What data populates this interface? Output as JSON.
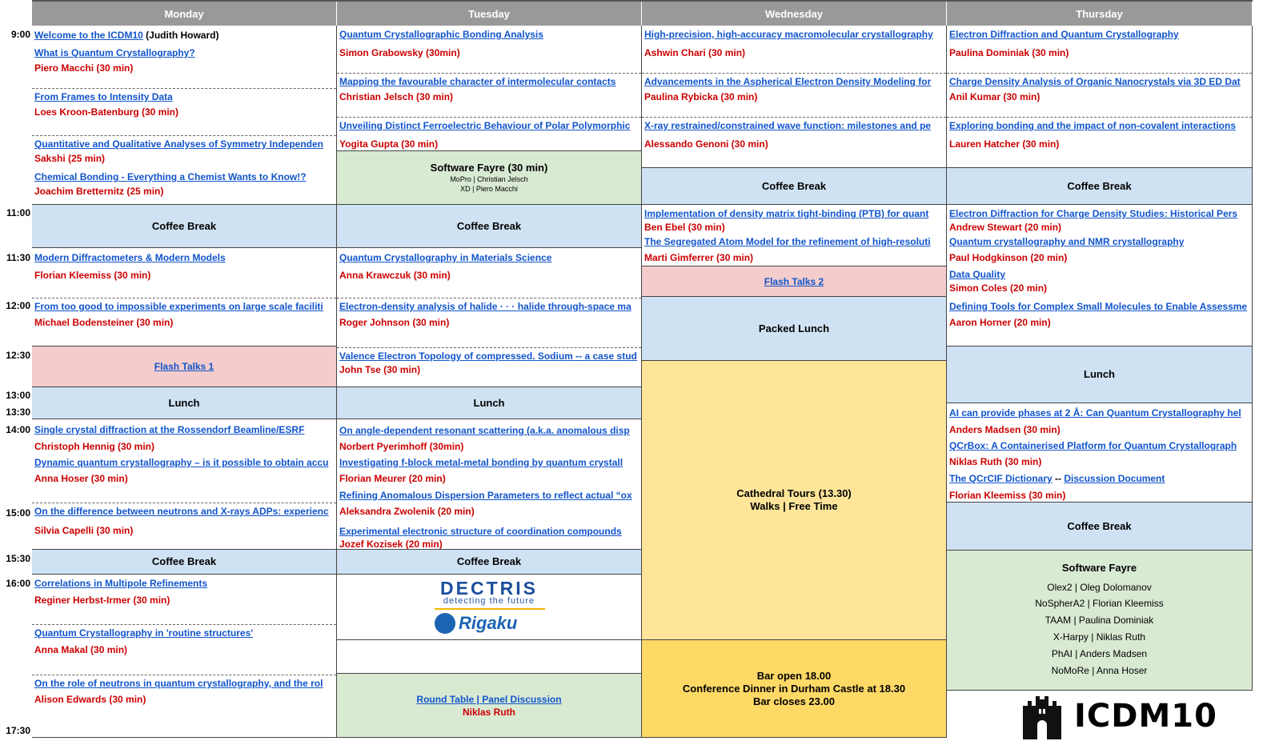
{
  "days": [
    "Monday",
    "Tuesday",
    "Wednesday",
    "Thursday"
  ],
  "times": [
    "9:00",
    "11:00",
    "11:30",
    "12:00",
    "12:30",
    "13:00",
    "13:30",
    "14:00",
    "15:00",
    "15:30",
    "16:00",
    "17:30"
  ],
  "columns": [
    {
      "blocks": [
        {
          "items": [
            {
              "title": "Welcome to the ICDM10",
              "note": "(Judith Howard)"
            },
            {
              "title": "What is Quantum Crystallography?",
              "speaker": "Piero Macchi (30 min)"
            },
            {
              "title": "From Frames to Intensity Data",
              "speaker": "Loes Kroon-Batenburg (30 min)"
            },
            {
              "title": "Quantitative and Qualitative Analyses of Symmetry Independen",
              "speaker": "Sakshi (25 min)"
            },
            {
              "title": "Chemical Bonding - Everything a Chemist Wants to Know!?",
              "speaker": "Joachim Bretternitz (25 min)"
            }
          ]
        },
        {
          "title": "Coffee Break"
        },
        {
          "items": [
            {
              "title": "Modern Diffractometers & Modern Models",
              "speaker": "Florian Kleemiss (30 min)"
            },
            {
              "title": "From too good to impossible experiments on large scale faciliti",
              "speaker": "Michael Bodensteiner (30 min)"
            }
          ]
        },
        {
          "title": "Flash Talks 1"
        },
        {
          "title": "Lunch"
        },
        {
          "items": [
            {
              "title": "Single crystal diffraction at the Rossendorf Beamline/ESRF",
              "speaker": "Christoph Hennig (30 min)"
            },
            {
              "title": "Dynamic quantum crystallography – is it possible to obtain accu",
              "speaker": "Anna Hoser (30 min)"
            },
            {
              "title": "On the difference between neutrons and X-rays ADPs: experienc",
              "speaker": "Silvia Capelli (30 min)"
            }
          ]
        },
        {
          "title": "Coffee Break"
        },
        {
          "items": [
            {
              "title": "Correlations in Multipole Refinements",
              "speaker": "Reginer Herbst-Irmer (30 min)"
            },
            {
              "title": "Quantum Crystallography in 'routine structures'",
              "speaker": "Anna Makal (30 min)"
            },
            {
              "title": "On the role of neutrons in quantum crystallography, and the rol",
              "speaker": "Alison Edwards (30 min)"
            }
          ]
        }
      ]
    },
    {
      "blocks": [
        {
          "items": [
            {
              "title": "Quantum Crystallographic Bonding Analysis",
              "speaker": "Simon Grabowsky (30min)"
            },
            {
              "title": "Mapping the favourable character of intermolecular contacts",
              "speaker": "Christian Jelsch (30 min)"
            },
            {
              "title": "Unveiling Distinct Ferroelectric Behaviour of Polar Polymorphic",
              "speaker": "Yogita Gupta (30 min)"
            }
          ]
        },
        {
          "title": "Software Fayre (30 min)",
          "lines": [
            "MoPro | Christian Jelsch",
            "XD | Piero Macchi"
          ]
        },
        {
          "title": "Coffee Break"
        },
        {
          "items": [
            {
              "title": "Quantum Crystallography in Materials Science",
              "speaker": "Anna Krawczuk (30 min)"
            },
            {
              "title": "Electron-density analysis of halide · · · halide through-space ma",
              "speaker": "Roger Johnson (30 min)"
            },
            {
              "title": "Valence Electron Topology of compressed. Sodium -- a case stud",
              "speaker": "John Tse (30 min)"
            }
          ]
        },
        {
          "title": "Lunch"
        },
        {
          "items": [
            {
              "title": "On angle-dependent resonant scattering (a.k.a. anomalous disp",
              "speaker": "Norbert Pyerimhoff (30min)"
            },
            {
              "title": "Investigating f-block metal-metal bonding by quantum crystall",
              "speaker": "Florian Meurer (20 min)"
            },
            {
              "title": "Refining Anomalous Dispersion Parameters to reflect actual “ox",
              "speaker": "Aleksandra Zwolenik (20 min)"
            },
            {
              "title": "Experimental electronic structure of coordination compounds",
              "speaker": "Jozef Kozisek (20 min)"
            }
          ]
        },
        {
          "title": "Coffee Break"
        },
        {
          "sponsors": [
            "DECTRIS",
            "detecting the future",
            "Rigaku"
          ]
        },
        {
          "title": "Round Table | Panel Discussion",
          "speaker": "Niklas Ruth"
        }
      ]
    },
    {
      "blocks": [
        {
          "items": [
            {
              "title": "High-precision, high-accuracy macromolecular crystallography",
              "speaker": "Ashwin Chari (30 min)"
            },
            {
              "title": "Advancements in the Aspherical Electron Density Modeling for",
              "speaker": "Paulina Rybicka (30 min)"
            },
            {
              "title": "X-ray restrained/constrained wave function: milestones and pe",
              "speaker": "Alessando Genoni (30 min)"
            }
          ]
        },
        {
          "title": "Coffee Break"
        },
        {
          "items": [
            {
              "title": "Implementation of density matrix tight-binding (PTB) for quant",
              "speaker": "Ben Ebel (30 min)"
            },
            {
              "title": "The Segregated Atom Model for the refinement of high-resoluti",
              "speaker": "Marti Gimferrer (30 min)"
            }
          ]
        },
        {
          "title": "Flash Talks 2"
        },
        {
          "title": "Packed Lunch"
        },
        {
          "title": "Cathedral Tours (13.30)",
          "lines": [
            "Walks | Free Time"
          ]
        },
        {
          "lines": [
            "Bar open 18.00",
            "Conference Dinner in Durham Castle at 18.30",
            "Bar closes 23.00"
          ]
        }
      ]
    },
    {
      "blocks": [
        {
          "items": [
            {
              "title": "Electron Diffraction and Quantum Crystallography",
              "speaker": "Paulina Dominiak (30 min)"
            },
            {
              "title": "Charge Density Analysis of Organic Nanocrystals via 3D ED Dat",
              "speaker": "Anil Kumar (30 min)"
            },
            {
              "title": "Exploring bonding and the impact of non-covalent interactions",
              "speaker": "Lauren Hatcher (30 min)"
            }
          ]
        },
        {
          "title": "Coffee Break"
        },
        {
          "items": [
            {
              "title": "Electron Diffraction for Charge Density Studies: Historical Pers",
              "speaker": "Andrew Stewart (20 min)"
            },
            {
              "title": "Quantum crystallography and NMR crystallography",
              "speaker": "Paul Hodgkinson (20 min)"
            },
            {
              "title": "Data Quality",
              "speaker": "Simon Coles (20 min)"
            },
            {
              "title": "Defining Tools for Complex Small Molecules to Enable Assessme",
              "speaker": "Aaron Horner (20 min)"
            }
          ]
        },
        {
          "title": "Lunch"
        },
        {
          "items": [
            {
              "title": "AI can provide phases at 2 Å: Can Quantum Crystallography hel",
              "speaker": "Anders Madsen (30 min)"
            },
            {
              "title": "QCrBox: A Containerised Platform for Quantum Crystallograph",
              "speaker": "Niklas Ruth (30 min)"
            },
            {
              "title": "The QCrCIF Dictionary",
              "joiner": " -- ",
              "link2": "Discussion Document",
              "speaker": "Florian Kleemiss (30 min)"
            }
          ]
        },
        {
          "title": "Coffee Break"
        },
        {
          "title": "Software Fayre",
          "lines": [
            "Olex2 | Oleg Dolomanov",
            "NoSpherA2 | Florian Kleemiss",
            "TAAM | Paulina Dominiak",
            "X-Harpy | Niklas Ruth",
            "PhAI | Anders Madsen",
            "NoMoRe | Anna Hoser"
          ]
        }
      ]
    }
  ],
  "logo": "ICDM10"
}
